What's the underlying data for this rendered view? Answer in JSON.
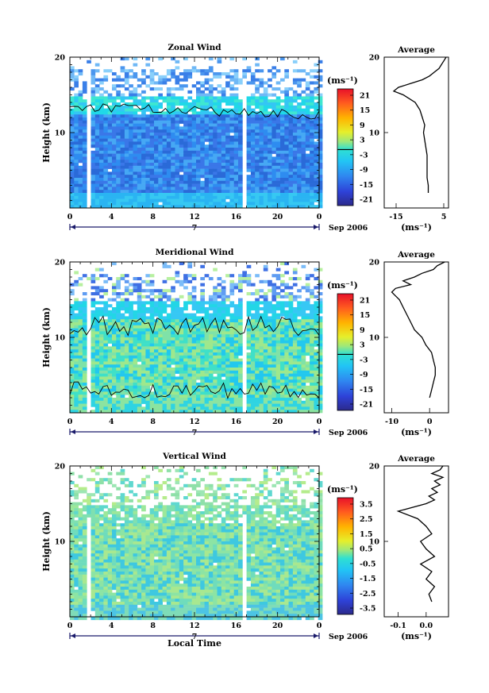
{
  "chart_data": [
    {
      "type": "heatmap",
      "title": "Zonal Wind",
      "xlabel": "",
      "ylabel": "Height (km)",
      "ytick_labels": [
        "10",
        "20"
      ],
      "ylim": [
        0,
        20
      ],
      "xtick_labels": [
        "0",
        "4",
        "8",
        "12",
        "16",
        "20",
        "0"
      ],
      "xlim": [
        0,
        24
      ],
      "date_label": "Sep 2006",
      "day_label": "7",
      "colorbar_unit": "(ms⁻¹)",
      "colorbar_labels": [
        "21",
        "15",
        "9",
        "3",
        "-3",
        "-9",
        "-15",
        "-21"
      ],
      "colorbar_contour": 0,
      "gaps_local_time": [
        1.7,
        16.6
      ],
      "gap_height_top_km": 17.5,
      "profile": {
        "title": "Average",
        "xtick_labels": [
          "-15",
          "5"
        ],
        "xtick_values": [
          -15,
          5
        ],
        "xlim": [
          -20,
          7
        ],
        "unit": "(ms⁻¹)",
        "height_km": [
          2,
          3,
          4,
          5,
          6,
          7,
          8,
          9,
          10,
          11,
          12,
          13,
          14,
          15,
          15.5,
          16,
          16.5,
          17,
          17.5,
          18,
          18.5,
          19,
          19.5,
          20
        ],
        "value": [
          -1.5,
          -1.5,
          -2,
          -2,
          -2,
          -2,
          -2.5,
          -3,
          -3.5,
          -3,
          -4,
          -5,
          -7,
          -12,
          -16,
          -14,
          -9,
          -4,
          -1,
          1,
          3,
          4,
          5,
          6
        ]
      }
    },
    {
      "type": "heatmap",
      "title": "Meridional Wind",
      "xlabel": "",
      "ylabel": "Height (km)",
      "ytick_labels": [
        "10",
        "20"
      ],
      "ylim": [
        0,
        20
      ],
      "xtick_labels": [
        "0",
        "4",
        "8",
        "12",
        "16",
        "20",
        "0"
      ],
      "xlim": [
        0,
        24
      ],
      "date_label": "Sep 2006",
      "day_label": "7",
      "colorbar_unit": "(ms⁻¹)",
      "colorbar_labels": [
        "21",
        "15",
        "9",
        "3",
        "-3",
        "-9",
        "-15",
        "-21"
      ],
      "colorbar_contour": 0,
      "gaps_local_time": [
        1.7,
        16.6
      ],
      "gap_height_top_km": 17.5,
      "profile": {
        "title": "Average",
        "xtick_labels": [
          "-10",
          "0"
        ],
        "xtick_values": [
          -10,
          0
        ],
        "xlim": [
          -12,
          5
        ],
        "unit": "(ms⁻¹)",
        "height_km": [
          2,
          3,
          4,
          5,
          6,
          7,
          8,
          9,
          10,
          11,
          12,
          13,
          14,
          15,
          15.5,
          16,
          16.5,
          17,
          17.5,
          18,
          18.5,
          19,
          19.5,
          20
        ],
        "value": [
          0,
          0.5,
          1,
          1.5,
          1.5,
          1,
          0.5,
          -1,
          -2,
          -4,
          -5,
          -6,
          -7,
          -8,
          -9,
          -10,
          -9,
          -5,
          -7,
          -4,
          -2,
          1,
          2,
          4
        ]
      }
    },
    {
      "type": "heatmap",
      "title": "Vertical Wind",
      "xlabel": "Local Time",
      "ylabel": "Height (km)",
      "ytick_labels": [
        "10",
        "20"
      ],
      "ylim": [
        0,
        20
      ],
      "xtick_labels": [
        "0",
        "4",
        "8",
        "12",
        "16",
        "20",
        "0"
      ],
      "xlim": [
        0,
        24
      ],
      "date_label": "Sep 2006",
      "day_label": "7",
      "colorbar_unit": "(ms⁻¹)",
      "colorbar_labels": [
        "3.5",
        "2.5",
        "1.5",
        "0.5",
        "-0.5",
        "-1.5",
        "-2.5",
        "-3.5"
      ],
      "gaps_local_time": [
        1.7,
        16.6
      ],
      "gap_height_top_km": 12.5,
      "profile": {
        "title": "Average",
        "xtick_labels": [
          "-0.1",
          "0.0"
        ],
        "xtick_values": [
          -0.1,
          0.0
        ],
        "xlim": [
          -0.15,
          0.08
        ],
        "unit": "(ms⁻¹)",
        "height_km": [
          2,
          3,
          4,
          5,
          6,
          7,
          8,
          9,
          10,
          11,
          12,
          13,
          14,
          15,
          15.5,
          16,
          16.5,
          17,
          17.5,
          18,
          18.5,
          19,
          19.5,
          20
        ],
        "value": [
          0.02,
          0.01,
          0.03,
          0.0,
          0.02,
          -0.02,
          0.03,
          0.0,
          -0.02,
          0.02,
          0.0,
          -0.03,
          -0.1,
          0.0,
          0.03,
          0.01,
          0.04,
          0.02,
          0.05,
          0.03,
          0.06,
          0.02,
          0.05,
          0.06
        ]
      }
    }
  ]
}
